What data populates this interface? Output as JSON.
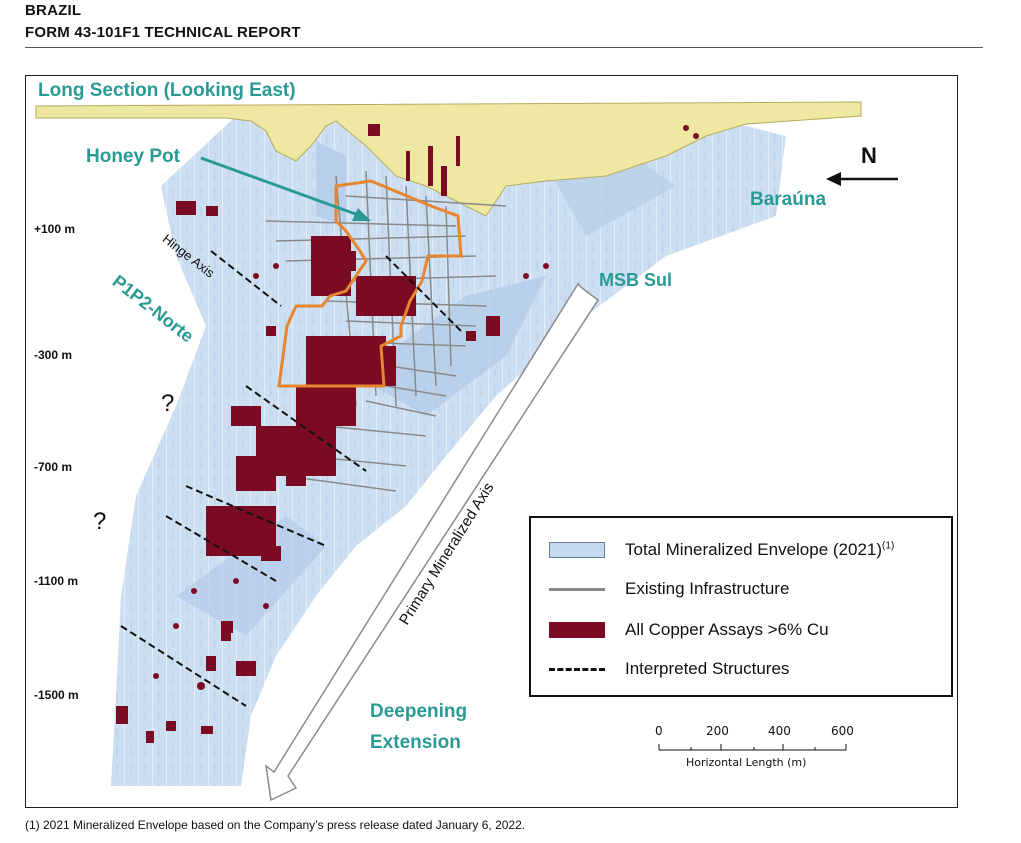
{
  "header": {
    "line1": "BRAZIL",
    "line2": "FORM 43-101F1 TECHNICAL REPORT"
  },
  "figure": {
    "title": "Long Section (Looking East)",
    "labels": {
      "honey_pot": "Honey Pot",
      "barauna": "Baraúna",
      "msb_sul": "MSB Sul",
      "p1p2_norte": "P1P2-Norte",
      "hinge_axis": "Hinge Axis",
      "primary_axis": "Primary Mineralized Axis",
      "deepening": "Deepening",
      "extension": "Extension"
    },
    "question_marks": [
      "?",
      "?"
    ],
    "north": "N",
    "depths": [
      "+100 m",
      "-300 m",
      "-700 m",
      "-1100 m",
      "-1500 m"
    ],
    "legend": {
      "envelope": "Total Mineralized Envelope (2021)",
      "envelope_note": "(1)",
      "infrastructure": "Existing Infrastructure",
      "copper": "All Copper Assays >6% Cu",
      "structures": "Interpreted Structures"
    },
    "scale": {
      "ticks": [
        "0",
        "200",
        "400",
        "600"
      ],
      "label": "Horizontal Length (m)"
    },
    "colors": {
      "envelope": "#c5d9ef",
      "oxide": "#eee8a3",
      "copper": "#7a0b22",
      "outline": "#e8862f",
      "label_teal": "#2a9a94",
      "infrastructure": "#8a8a8a"
    }
  },
  "footnote": "(1) 2021 Mineralized Envelope based on the Company’s press release dated January 6, 2022."
}
